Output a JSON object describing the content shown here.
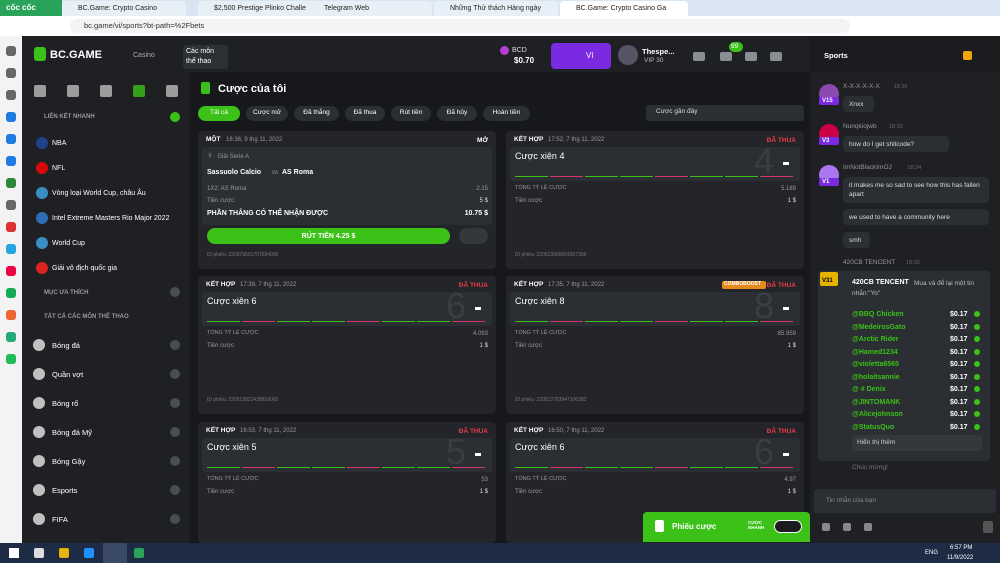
{
  "browser": {
    "logo": "cốc cốc",
    "tabs": [
      "BC.Game: Crypto Casino",
      "$2,500 Prestige Plinko Challe",
      "Telegram Web",
      "Những Thử thách Hàng ngày",
      "BC.Game: Crypto Casino Ga"
    ],
    "url": "bc.game/vi/sports?bt-path=%2Fbets"
  },
  "header": {
    "brand": "BC.GAME",
    "nav": [
      "Casino",
      "Các môn thể thao"
    ],
    "currency": "BCD",
    "balance": "$0.70",
    "wallet": "Ví",
    "user": "Thespe...",
    "vip": "VIP 30",
    "badge": "99"
  },
  "sidebar": {
    "quick_title": "LIÊN KẾT NHANH",
    "quick": [
      "NBA",
      "NFL",
      "Vòng loại World Cup, châu Âu",
      "Intel Extreme Masters Rio Major 2022",
      "World Cup",
      "Giải vô địch quốc gia"
    ],
    "fav_title": "MỤC ƯA THÍCH",
    "all_title": "TẤT CẢ CÁC MÔN THỂ THAO",
    "sports": [
      "Bóng đá",
      "Quần vợt",
      "Bóng rổ",
      "Bóng đá Mỹ",
      "Bóng Gậy",
      "Esports",
      "FIFA"
    ]
  },
  "main": {
    "title": "Cược của tôi",
    "filters": [
      "Tất cả",
      "Cược mở",
      "Đã thắng",
      "Đã thua",
      "Rút tiền",
      "Đã hủy",
      "Hoàn tiền"
    ],
    "sort": "Cược gần đây",
    "single": {
      "kind": "MỘT",
      "time": "18:36, 9 thg 11, 2022",
      "status": "MỞ",
      "league": "Ý · Giải Serie A",
      "home": "Sassuolo Calcio",
      "vs": "vs",
      "away": "AS Roma",
      "market": "1X2: AS Roma",
      "odds": "2.15",
      "stake_label": "Tiền cược",
      "stake": "5 $",
      "win_label": "PHẦN THẮNG CÓ THỂ NHẬN ĐƯỢC",
      "win": "10.75 $",
      "cashout": "RÚT TIỀN 4.25 $",
      "id": "ID phiếu: 220979691707694096"
    },
    "combos": [
      {
        "kind": "KẾT HỢP",
        "time": "17:52, 7 thg 11, 2022",
        "status": "ĐÃ THUA",
        "name": "Cược xiên 4",
        "big": "4",
        "odds_label": "TỔNG TỶ LỆ CƯỢC",
        "odds": "5.189",
        "stake_label": "Tiền cược",
        "stake": "1 $",
        "id": "ID phiếu: 220513000664207306"
      },
      {
        "kind": "KẾT HỢP",
        "time": "17:39, 7 thg 11, 2022",
        "status": "ĐÃ THUA",
        "name": "Cược xiên 6",
        "big": "6",
        "odds_label": "TỔNG TỶ LỆ CƯỢC",
        "odds": "4.093",
        "stake_label": "Tiền cược",
        "stake": "1 $",
        "id": "ID phiếu: 220513823428816065"
      },
      {
        "kind": "KẾT HỢP",
        "time": "17:35, 7 thg 11, 2022",
        "boost": "COMBOBOOST",
        "status": "ĐÃ THUA",
        "name": "Cược xiên 8",
        "big": "8",
        "odds_label": "TỔNG TỶ LỆ CƯỢC",
        "odds": "85.959",
        "stake_label": "Tiền cược",
        "stake": "1 $",
        "id": "ID phiếu: 220513763947100282"
      },
      {
        "kind": "KẾT HỢP",
        "time": "16:53, 7 thg 11, 2022",
        "status": "ĐÃ THUA",
        "name": "Cược xiên 5",
        "big": "5",
        "odds_label": "TỔNG TỶ LỆ CƯỢC",
        "odds": "53",
        "stake_label": "Tiền cược",
        "stake": "1 $"
      },
      {
        "kind": "KẾT HỢP",
        "time": "16:50, 7 thg 11, 2022",
        "status": "ĐÃ THUA",
        "name": "Cược xiên 6",
        "big": "6",
        "odds_label": "TỔNG TỶ LỆ CƯỢC",
        "odds": "4.97",
        "stake_label": "Tiền cược",
        "stake": "1 $"
      }
    ]
  },
  "chat": {
    "tab": "Sports",
    "messages": [
      {
        "user": "X-X-X-X-X-X",
        "level": "V15",
        "time": "18:30",
        "lines": [
          "Xnxx"
        ]
      },
      {
        "user": "Nunqkiojwb",
        "level": "V3",
        "time": "18:30",
        "lines": [
          "how do I get shitcode?"
        ]
      },
      {
        "user": "ImNotBlackImOJ",
        "level": "V1",
        "time": "18:34",
        "lines": [
          "it makes me so sad to see how this has fallen apart",
          "we used to have a community here",
          "smh"
        ]
      }
    ],
    "rain": {
      "user": "420CB TENCENT",
      "time": "18:35",
      "level": "V31",
      "title": "420CB TENCENT",
      "text": "Mua và để lại một tin nhắn:\"Yo\"",
      "winners": [
        {
          "name": "@BBQ Chicken",
          "amount": "$0.17"
        },
        {
          "name": "@MedeirosGato",
          "amount": "$0.17"
        },
        {
          "name": "@Arctic Rider",
          "amount": "$0.17"
        },
        {
          "name": "@Hamed1234",
          "amount": "$0.17"
        },
        {
          "name": "@violetta6565",
          "amount": "$0.17"
        },
        {
          "name": "@holaitsannie",
          "amount": "$0.17"
        },
        {
          "name": "@ # Denix",
          "amount": "$0.17"
        },
        {
          "name": "@JINTOMANK",
          "amount": "$0.17"
        },
        {
          "name": "@Alicejohnson",
          "amount": "$0.17"
        },
        {
          "name": "@StatusQuo",
          "amount": "$0.17"
        }
      ],
      "more": "Hiển thị thêm",
      "congrats": "Chúc mừng!"
    },
    "input": "Tin nhắn của bạn"
  },
  "betslip": {
    "label": "Phiếu cược",
    "quick": "CƯỢC NHANH"
  },
  "taskbar": {
    "lang": "ENG",
    "time": "6:57 PM",
    "date": "11/9/2022"
  }
}
